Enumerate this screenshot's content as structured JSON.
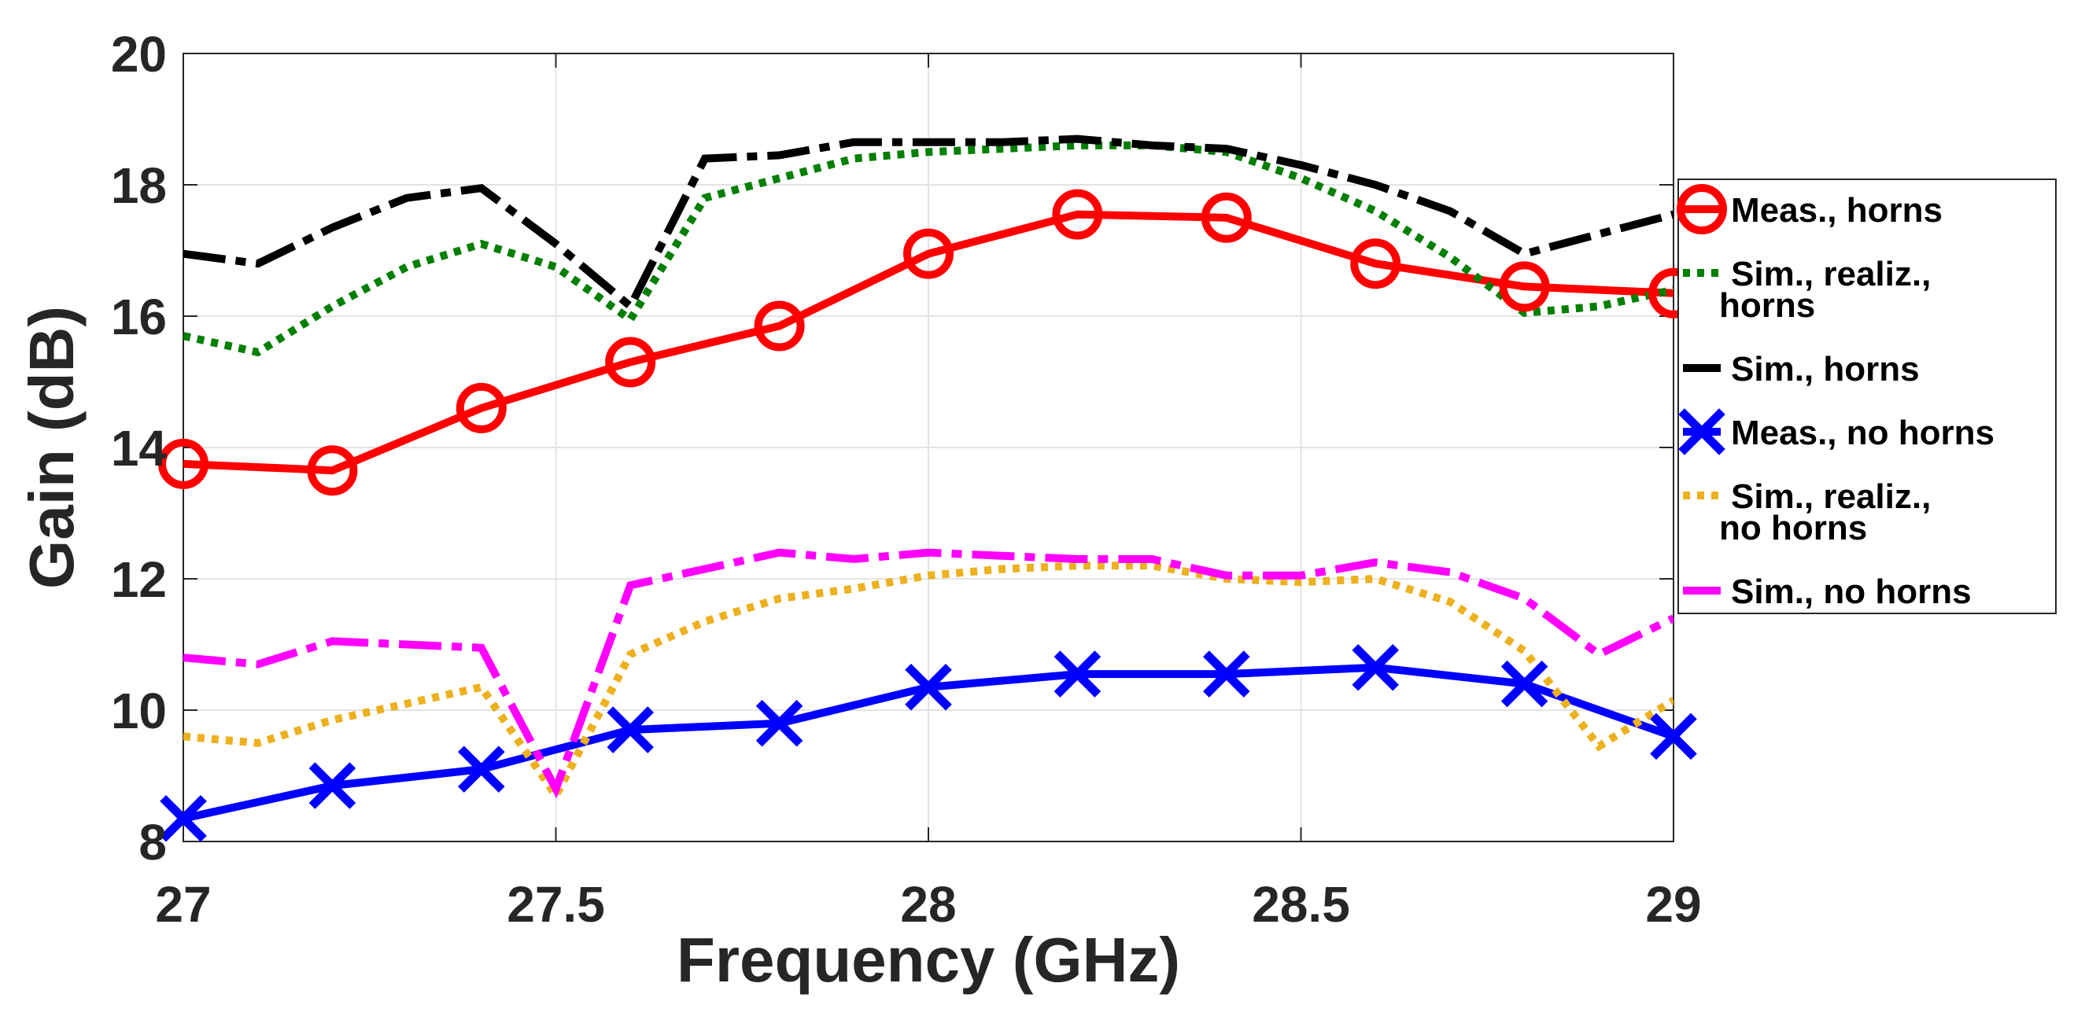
{
  "chart_data": {
    "type": "line",
    "title": "",
    "xlabel": "Frequency (GHz)",
    "ylabel": "Gain (dB)",
    "xlim": [
      27,
      29
    ],
    "ylim": [
      8,
      20
    ],
    "grid": true,
    "xticks": [
      27,
      27.5,
      28,
      28.5,
      29
    ],
    "xtick_labels": [
      "27",
      "27.5",
      "28",
      "28.5",
      "29"
    ],
    "yticks": [
      8,
      10,
      12,
      14,
      16,
      18,
      20
    ],
    "ytick_labels": [
      "8",
      "10",
      "12",
      "14",
      "16",
      "18",
      "20"
    ],
    "legend_position": "right",
    "series": [
      {
        "name": "Meas., horns",
        "legend_lines": [
          "Meas., horns"
        ],
        "color": "#ff0000",
        "style": "solid",
        "marker": "circle",
        "x": [
          27,
          27.2,
          27.4,
          27.6,
          27.8,
          28,
          28.2,
          28.4,
          28.6,
          28.8,
          29
        ],
        "y": [
          13.75,
          13.65,
          14.6,
          15.3,
          15.85,
          16.95,
          17.55,
          17.5,
          16.8,
          16.45,
          16.35
        ]
      },
      {
        "name": "Sim., realiz., horns",
        "legend_lines": [
          "Sim., realiz.,",
          "horns"
        ],
        "color": "#007f00",
        "style": "dotted",
        "marker": "none",
        "x": [
          27,
          27.1,
          27.2,
          27.3,
          27.4,
          27.5,
          27.6,
          27.7,
          27.8,
          27.9,
          28,
          28.1,
          28.2,
          28.3,
          28.4,
          28.5,
          28.6,
          28.7,
          28.8,
          28.9,
          29
        ],
        "y": [
          15.7,
          15.45,
          16.15,
          16.75,
          17.1,
          16.75,
          15.95,
          17.8,
          18.1,
          18.4,
          18.5,
          18.55,
          18.6,
          18.6,
          18.5,
          18.1,
          17.6,
          16.9,
          16.05,
          16.15,
          16.4
        ]
      },
      {
        "name": "Sim., horns",
        "legend_lines": [
          "Sim., horns"
        ],
        "color": "#000000",
        "style": "dashdot",
        "marker": "none",
        "x": [
          27,
          27.1,
          27.2,
          27.3,
          27.4,
          27.5,
          27.6,
          27.7,
          27.8,
          27.9,
          28,
          28.1,
          28.2,
          28.3,
          28.4,
          28.5,
          28.6,
          28.7,
          28.8,
          28.9,
          29
        ],
        "y": [
          16.95,
          16.8,
          17.35,
          17.8,
          17.95,
          17.1,
          16.15,
          18.4,
          18.45,
          18.65,
          18.65,
          18.65,
          18.7,
          18.6,
          18.55,
          18.3,
          18.0,
          17.6,
          16.95,
          17.25,
          17.55
        ]
      },
      {
        "name": "Meas., no horns",
        "legend_lines": [
          "Meas., no horns"
        ],
        "color": "#0000ff",
        "style": "solid",
        "marker": "x",
        "x": [
          27,
          27.2,
          27.4,
          27.6,
          27.8,
          28,
          28.2,
          28.4,
          28.6,
          28.8,
          29
        ],
        "y": [
          8.35,
          8.85,
          9.1,
          9.7,
          9.8,
          10.35,
          10.55,
          10.55,
          10.65,
          10.4,
          9.6
        ]
      },
      {
        "name": "Sim., realiz., no horns",
        "legend_lines": [
          "Sim., realiz.,",
          "no horns"
        ],
        "color": "#edb120",
        "style": "dotted",
        "marker": "none",
        "x": [
          27,
          27.1,
          27.2,
          27.3,
          27.4,
          27.5,
          27.6,
          27.7,
          27.8,
          27.9,
          28,
          28.1,
          28.2,
          28.3,
          28.4,
          28.5,
          28.6,
          28.7,
          28.8,
          28.9,
          29
        ],
        "y": [
          9.6,
          9.5,
          9.85,
          10.1,
          10.35,
          8.7,
          10.85,
          11.35,
          11.7,
          11.85,
          12.05,
          12.15,
          12.2,
          12.2,
          12.0,
          11.95,
          12.0,
          11.65,
          10.9,
          9.45,
          10.15
        ]
      },
      {
        "name": "Sim., no horns",
        "legend_lines": [
          "Sim., no horns"
        ],
        "color": "#ff00ff",
        "style": "dashdot",
        "marker": "none",
        "x": [
          27,
          27.1,
          27.2,
          27.3,
          27.4,
          27.5,
          27.6,
          27.7,
          27.8,
          27.9,
          28,
          28.1,
          28.2,
          28.3,
          28.4,
          28.5,
          28.6,
          28.7,
          28.8,
          28.9,
          29
        ],
        "y": [
          10.8,
          10.7,
          11.05,
          11.0,
          10.95,
          8.8,
          11.9,
          12.15,
          12.4,
          12.3,
          12.4,
          12.35,
          12.3,
          12.3,
          12.05,
          12.05,
          12.25,
          12.1,
          11.7,
          10.85,
          11.4
        ]
      }
    ]
  }
}
